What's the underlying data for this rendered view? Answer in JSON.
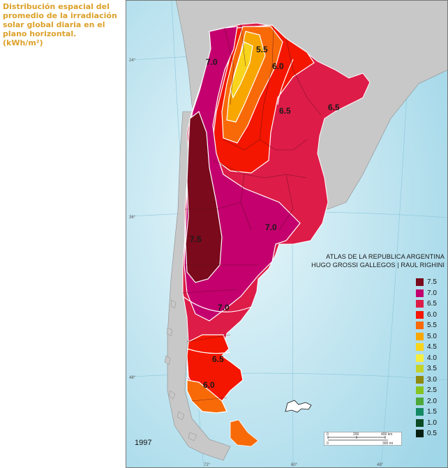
{
  "title_lines": [
    "Distribución espacial del",
    "promedio de la irradiación",
    "solar global diaria en el",
    "plano horizontal.",
    "(kWh/m²)"
  ],
  "atlas_credit": [
    "ATLAS DE LA REPUBLICA ARGENTINA",
    "HUGO GROSSI GALLEGOS | RAUL RIGHINI"
  ],
  "year": "1997",
  "latitude_labels": [
    "24°",
    "36°",
    "48°"
  ],
  "longitude_labels": [
    "72°",
    "60°",
    "48°"
  ],
  "contour_labels": [
    "5.5",
    "6.0",
    "6.5",
    "6.5",
    "7.0",
    "7.0",
    "7.5",
    "7.0",
    "6.5",
    "6.0"
  ],
  "scale": {
    "km_ticks": [
      "0",
      "200",
      "400 km"
    ],
    "mi_ticks": [
      "0",
      "300 mi"
    ]
  },
  "legend": [
    {
      "label": "7.5",
      "color": "#7a0a1c"
    },
    {
      "label": "7.0",
      "color": "#c3006e"
    },
    {
      "label": "6.5",
      "color": "#de1c48"
    },
    {
      "label": "6.0",
      "color": "#f41600"
    },
    {
      "label": "5.5",
      "color": "#f86a08"
    },
    {
      "label": "5.0",
      "color": "#f8a600"
    },
    {
      "label": "4.5",
      "color": "#f8d41c"
    },
    {
      "label": "4.0",
      "color": "#f4ee40"
    },
    {
      "label": "3.5",
      "color": "#c4d22a"
    },
    {
      "label": "3.0",
      "color": "#8e8a0e"
    },
    {
      "label": "2.5",
      "color": "#88c420"
    },
    {
      "label": "2.0",
      "color": "#4ea83a"
    },
    {
      "label": "1.5",
      "color": "#148a64"
    },
    {
      "label": "1.0",
      "color": "#0a4a24"
    },
    {
      "label": "0.5",
      "color": "#061e10"
    }
  ],
  "colors": {
    "ocean": "#b8e2ee",
    "land": "#c8c8c8",
    "border": "#5a5a5a"
  }
}
